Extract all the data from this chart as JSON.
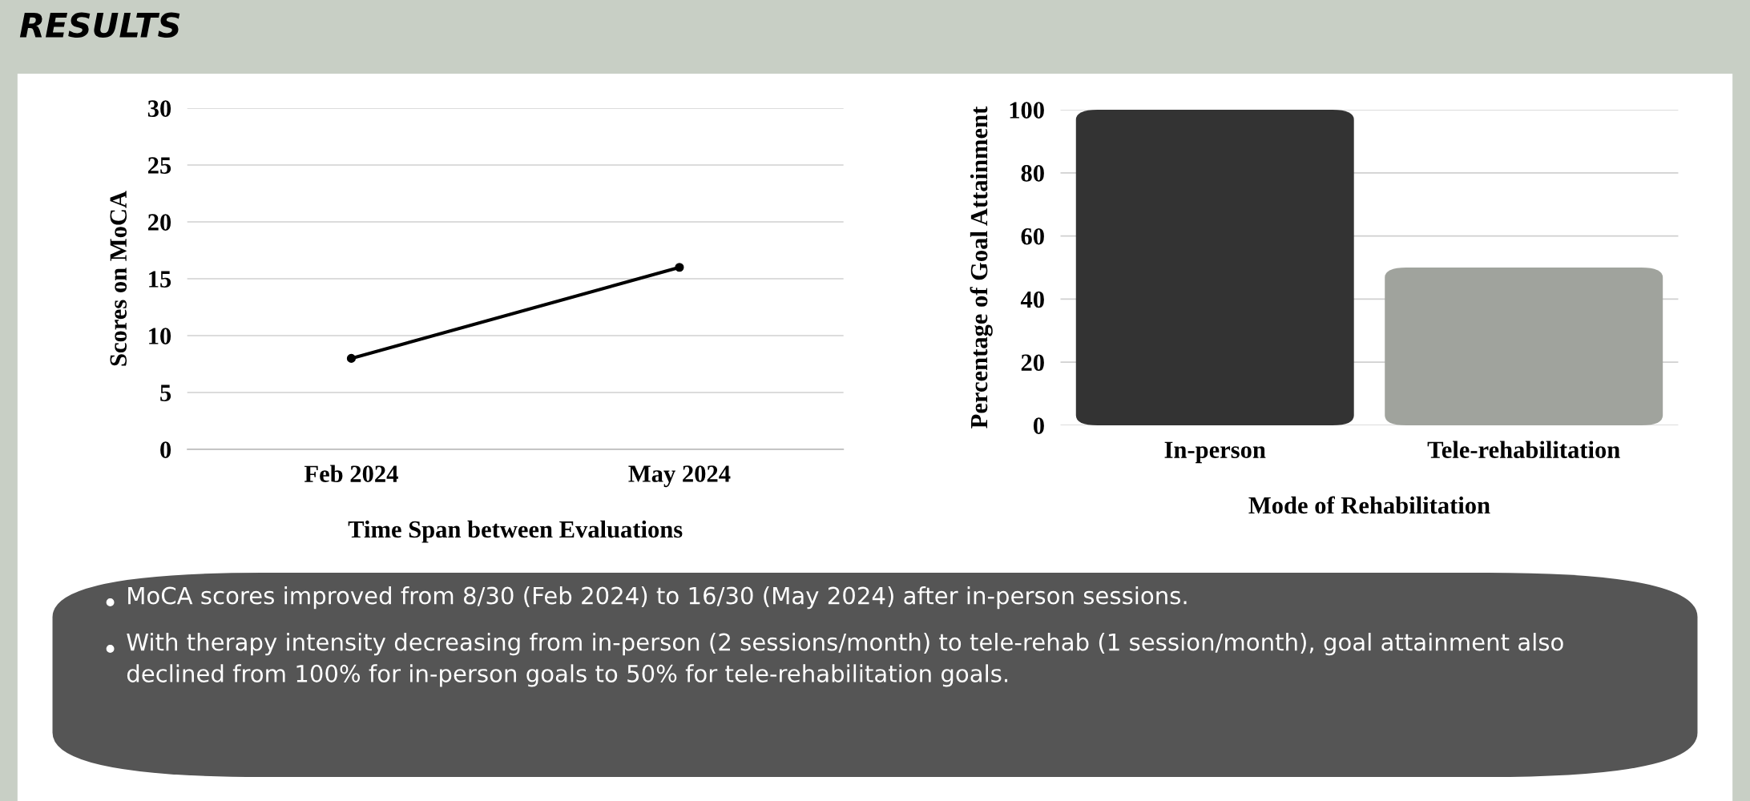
{
  "chart_data": [
    {
      "type": "line",
      "title": "RESULTS",
      "xlabel": "Time Span between Evaluations",
      "ylabel": "Scores on MoCA",
      "categories": [
        "Feb 2024",
        "May 2024"
      ],
      "series": [
        {
          "color": "#000000",
          "values": [
            8,
            16
          ]
        }
      ],
      "ylim": [
        0,
        30
      ],
      "yticks": [
        0,
        5,
        10,
        15,
        20,
        25,
        30
      ],
      "grid": "y",
      "marker": "circle",
      "line_style": "solid"
    },
    {
      "type": "bar",
      "xlabel": "Mode of Rehabilitation",
      "ylabel": "Percentage of Goal Attainment",
      "categories": [
        "In-person",
        "Tele-rehabilitation"
      ],
      "values": [
        100,
        50
      ],
      "colors": [
        "#333333",
        "#a0a39d"
      ],
      "ylim": [
        0,
        100
      ],
      "yticks": [
        0,
        20,
        40,
        60,
        80,
        100
      ],
      "grid": "y",
      "annotations": [
        "MoCA scores improved from 8/30 (Feb 2024) to 16/30 (May 2024) after in-person sessions.",
        "With therapy intensity decreasing from in-person (2 sessions/month) to tele-rehab (1 session/month), goal attainment also declined from 100% for in-person goals to 50% for tele-rehabilitation goals."
      ]
    }
  ]
}
